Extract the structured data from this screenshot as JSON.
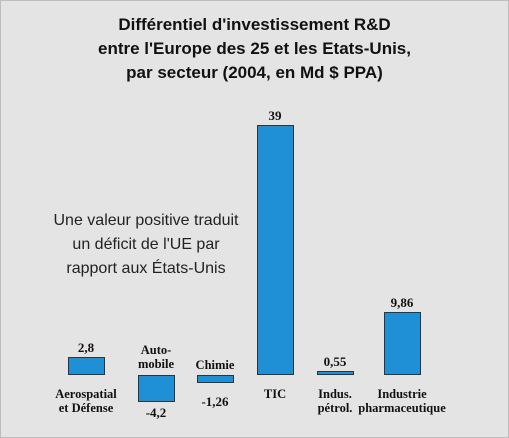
{
  "chart_data": {
    "type": "bar",
    "title": "Différentiel d'investissement R&D\nentre l'Europe des 25 et les Etats-Unis,\npar secteur (2004, en Md $ PPA)",
    "annotation": "Une valeur positive traduit\nun déficit de l'UE par\nrapport aux États-Unis",
    "categories": [
      "Aerospatial\net Défense",
      "Auto-\nmobile",
      "Chimie",
      "TIC",
      "Indus.\npétrol.",
      "Industrie\npharmaceutique"
    ],
    "values": [
      2.8,
      -4.2,
      -1.26,
      39,
      0.55,
      9.86
    ],
    "value_labels": [
      "2,8",
      "-4,2",
      "-1,26",
      "39",
      "0,55",
      "9,86"
    ],
    "color": "#1f8fd6"
  }
}
